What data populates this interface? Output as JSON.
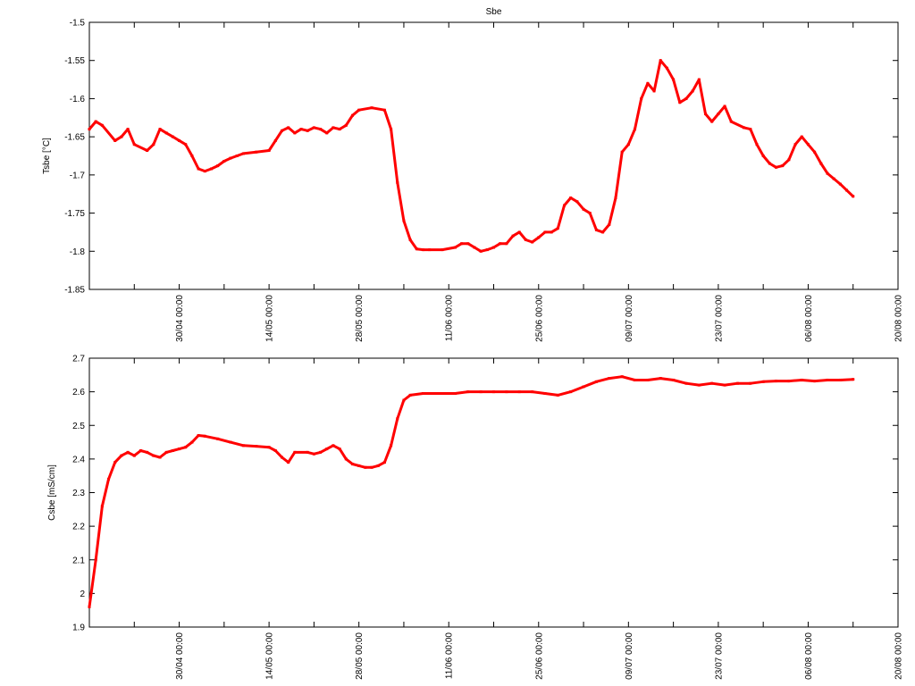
{
  "chart_data": [
    {
      "type": "scatter",
      "title": "Sbe",
      "xlabel": "",
      "ylabel": "Tsbe [°C]",
      "ylim": [
        -1.85,
        -1.5
      ],
      "yticks": [
        "-1.85",
        "-1.8",
        "-1.75",
        "-1.7",
        "-1.65",
        "-1.6",
        "-1.55",
        "-1.5"
      ],
      "ytick_values": [
        -1.85,
        -1.8,
        -1.75,
        -1.7,
        -1.65,
        -1.6,
        -1.55,
        -1.5
      ],
      "xlim": [
        "16/04 00:00",
        "20/08 00:00"
      ],
      "xticks": [
        "30/04 00:00",
        "14/05 00:00",
        "28/05 00:00",
        "11/06 00:00",
        "25/06 00:00",
        "09/07 00:00",
        "23/07 00:00",
        "06/08 00:00",
        "20/08 00:00"
      ],
      "grid": false,
      "color": "#ff0000",
      "series": [
        {
          "x": [
            "16/04",
            "17/04",
            "18/04",
            "20/04",
            "21/04",
            "22/04",
            "23/04",
            "25/04",
            "26/04",
            "27/04",
            "28/04",
            "29/04",
            "30/04",
            "01/05",
            "02/05",
            "03/05",
            "04/05",
            "05/05",
            "06/05",
            "07/05",
            "08/05",
            "09/05",
            "10/05",
            "12/05",
            "14/05",
            "15/05",
            "16/05",
            "17/05",
            "18/05",
            "19/05",
            "20/05",
            "21/05",
            "22/05",
            "23/05",
            "24/05",
            "25/05",
            "26/05",
            "27/05",
            "28/05",
            "30/05",
            "01/06",
            "02/06",
            "03/06",
            "04/06",
            "05/06",
            "06/06",
            "07/06",
            "08/06",
            "10/06",
            "12/06",
            "13/06",
            "14/06",
            "15/06",
            "16/06",
            "17/06",
            "18/06",
            "19/06",
            "20/06",
            "21/06",
            "22/06",
            "23/06",
            "24/06",
            "25/06",
            "26/06",
            "27/06",
            "28/06",
            "29/06",
            "30/06",
            "01/07",
            "02/07",
            "03/07",
            "04/07",
            "05/07",
            "06/07",
            "07/07",
            "08/07",
            "09/07",
            "10/07",
            "11/07",
            "12/07",
            "13/07",
            "14/07",
            "15/07",
            "16/07",
            "17/07",
            "18/07",
            "19/07",
            "20/07",
            "21/07",
            "22/07",
            "23/07",
            "24/07",
            "25/07",
            "27/07",
            "28/07",
            "29/07",
            "30/07",
            "31/07",
            "01/08",
            "02/08",
            "03/08",
            "04/08",
            "05/08",
            "06/08",
            "07/08",
            "08/08",
            "09/08",
            "10/08",
            "11/08",
            "12/08",
            "13/08"
          ],
          "y": [
            -1.64,
            -1.63,
            -1.635,
            -1.655,
            -1.65,
            -1.64,
            -1.66,
            -1.668,
            -1.66,
            -1.64,
            -1.645,
            -1.65,
            -1.655,
            -1.66,
            -1.675,
            -1.692,
            -1.695,
            -1.692,
            -1.688,
            -1.682,
            -1.678,
            -1.675,
            -1.672,
            -1.67,
            -1.668,
            -1.655,
            -1.642,
            -1.638,
            -1.645,
            -1.64,
            -1.642,
            -1.638,
            -1.64,
            -1.645,
            -1.638,
            -1.64,
            -1.635,
            -1.622,
            -1.615,
            -1.612,
            -1.615,
            -1.64,
            -1.71,
            -1.76,
            -1.785,
            -1.797,
            -1.798,
            -1.798,
            -1.798,
            -1.795,
            -1.79,
            -1.79,
            -1.795,
            -1.8,
            -1.798,
            -1.795,
            -1.79,
            -1.79,
            -1.78,
            -1.775,
            -1.785,
            -1.788,
            -1.782,
            -1.775,
            -1.775,
            -1.77,
            -1.74,
            -1.73,
            -1.735,
            -1.745,
            -1.75,
            -1.772,
            -1.775,
            -1.765,
            -1.73,
            -1.67,
            -1.66,
            -1.64,
            -1.6,
            -1.58,
            -1.59,
            -1.55,
            -1.56,
            -1.575,
            -1.605,
            -1.6,
            -1.59,
            -1.575,
            -1.62,
            -1.63,
            -1.62,
            -1.61,
            -1.63,
            -1.638,
            -1.64,
            -1.66,
            -1.675,
            -1.685,
            -1.69,
            -1.688,
            -1.68,
            -1.66,
            -1.65,
            -1.66,
            -1.67,
            -1.685,
            -1.698,
            -1.705,
            -1.712,
            -1.72,
            -1.728
          ]
        }
      ]
    },
    {
      "type": "scatter",
      "title": "",
      "xlabel": "",
      "ylabel": "Csbe [mS/cm]",
      "ylim": [
        1.9,
        2.7
      ],
      "yticks": [
        "1.9",
        "2",
        "2.1",
        "2.2",
        "2.3",
        "2.4",
        "2.5",
        "2.6",
        "2.7"
      ],
      "ytick_values": [
        1.9,
        2.0,
        2.1,
        2.2,
        2.3,
        2.4,
        2.5,
        2.6,
        2.7
      ],
      "xlim": [
        "16/04 00:00",
        "20/08 00:00"
      ],
      "xticks": [
        "30/04 00:00",
        "14/05 00:00",
        "28/05 00:00",
        "11/06 00:00",
        "25/06 00:00",
        "09/07 00:00",
        "23/07 00:00",
        "06/08 00:00",
        "20/08 00:00"
      ],
      "grid": false,
      "color": "#ff0000",
      "series": [
        {
          "x": [
            "16/04",
            "17/04",
            "18/04",
            "19/04",
            "20/04",
            "21/04",
            "22/04",
            "23/04",
            "24/04",
            "25/04",
            "26/04",
            "27/04",
            "28/04",
            "29/04",
            "30/04",
            "01/05",
            "02/05",
            "03/05",
            "04/05",
            "06/05",
            "08/05",
            "10/05",
            "12/05",
            "14/05",
            "15/05",
            "16/05",
            "17/05",
            "18/05",
            "20/05",
            "21/05",
            "22/05",
            "23/05",
            "24/05",
            "25/05",
            "26/05",
            "27/05",
            "28/05",
            "29/05",
            "30/05",
            "31/05",
            "01/06",
            "02/06",
            "03/06",
            "04/06",
            "05/06",
            "07/06",
            "10/06",
            "12/06",
            "14/06",
            "16/06",
            "18/06",
            "20/06",
            "22/06",
            "24/06",
            "26/06",
            "28/06",
            "30/06",
            "02/07",
            "04/07",
            "06/07",
            "08/07",
            "10/07",
            "12/07",
            "14/07",
            "16/07",
            "18/07",
            "20/07",
            "22/07",
            "24/07",
            "26/07",
            "28/07",
            "30/07",
            "01/08",
            "03/08",
            "05/08",
            "07/08",
            "09/08",
            "11/08",
            "13/08"
          ],
          "y": [
            1.96,
            2.1,
            2.26,
            2.34,
            2.39,
            2.41,
            2.42,
            2.41,
            2.425,
            2.42,
            2.41,
            2.405,
            2.42,
            2.425,
            2.43,
            2.435,
            2.45,
            2.47,
            2.468,
            2.46,
            2.45,
            2.44,
            2.438,
            2.435,
            2.425,
            2.405,
            2.39,
            2.42,
            2.42,
            2.415,
            2.42,
            2.43,
            2.44,
            2.43,
            2.4,
            2.385,
            2.38,
            2.375,
            2.375,
            2.38,
            2.39,
            2.44,
            2.52,
            2.575,
            2.59,
            2.595,
            2.595,
            2.595,
            2.6,
            2.6,
            2.6,
            2.6,
            2.6,
            2.6,
            2.595,
            2.59,
            2.6,
            2.615,
            2.63,
            2.64,
            2.645,
            2.635,
            2.635,
            2.64,
            2.635,
            2.625,
            2.62,
            2.625,
            2.62,
            2.625,
            2.625,
            2.63,
            2.632,
            2.632,
            2.635,
            2.632,
            2.635,
            2.635,
            2.637
          ]
        }
      ]
    }
  ]
}
